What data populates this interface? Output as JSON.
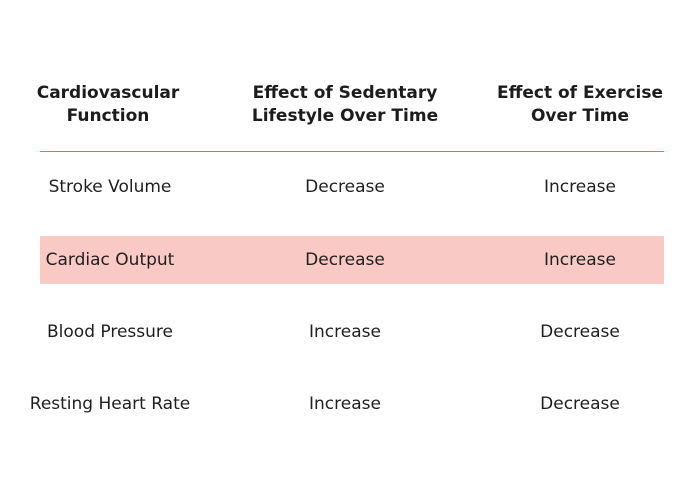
{
  "table": {
    "headers": [
      [
        "Cardiovascular",
        "Function"
      ],
      [
        "Effect of Sedentary",
        "Lifestyle Over Time"
      ],
      [
        "Effect of Exercise",
        "Over Time"
      ]
    ],
    "rows": [
      [
        "Stroke Volume",
        "Decrease",
        "Increase"
      ],
      [
        "Cardiac Output",
        "Decrease",
        "Increase"
      ],
      [
        "Blood Pressure",
        "Increase",
        "Decrease"
      ],
      [
        "Resting Heart Rate",
        "Increase",
        "Decrease"
      ]
    ],
    "highlighted_row_index": 1
  },
  "colors": {
    "rule": "#e26a6a",
    "highlight": "#f8c9c5",
    "text": "#1f1f1f"
  }
}
